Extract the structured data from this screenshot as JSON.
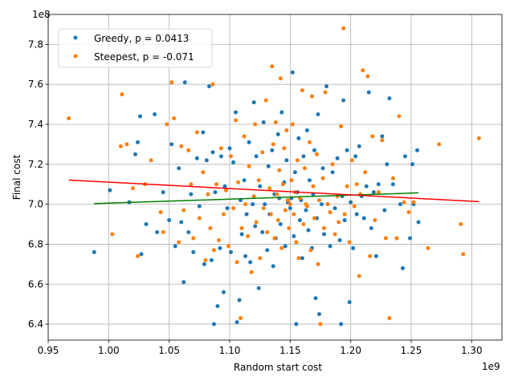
{
  "chart_data": {
    "type": "scatter",
    "title": "",
    "xlabel": "Random start cost",
    "ylabel": "Final cost",
    "x_offset_label": "1e9",
    "y_offset_label": "1e8",
    "xlim": [
      0.95,
      1.325
    ],
    "ylim": [
      6.32,
      7.95
    ],
    "x_ticks": [
      "0.95",
      "1.00",
      "1.05",
      "1.10",
      "1.15",
      "1.20",
      "1.25",
      "1.30"
    ],
    "x_tick_values": [
      0.95,
      1.0,
      1.05,
      1.1,
      1.15,
      1.2,
      1.25,
      1.3
    ],
    "y_ticks": [
      "6.4",
      "6.6",
      "6.8",
      "7.0",
      "7.2",
      "7.4",
      "7.6",
      "7.8"
    ],
    "y_tick_values": [
      6.4,
      6.6,
      6.8,
      7.0,
      7.2,
      7.4,
      7.6,
      7.8
    ],
    "grid": true,
    "legend_position": "top-left",
    "series": [
      {
        "name": "Greedy, p = 0.0413",
        "color": "#1f77b4",
        "points": [
          [
            0.988,
            6.76
          ],
          [
            1.001,
            7.07
          ],
          [
            1.017,
            7.01
          ],
          [
            1.022,
            7.25
          ],
          [
            1.024,
            7.31
          ],
          [
            1.027,
            6.75
          ],
          [
            1.026,
            7.44
          ],
          [
            1.031,
            6.9
          ],
          [
            1.038,
            7.45
          ],
          [
            1.04,
            6.86
          ],
          [
            1.045,
            7.06
          ],
          [
            1.05,
            6.92
          ],
          [
            1.052,
            7.3
          ],
          [
            1.055,
            6.79
          ],
          [
            1.058,
            7.18
          ],
          [
            1.06,
            6.91
          ],
          [
            1.062,
            6.61
          ],
          [
            1.063,
            7.61
          ],
          [
            1.066,
            6.86
          ],
          [
            1.068,
            7.05
          ],
          [
            1.07,
            6.76
          ],
          [
            1.073,
            7.23
          ],
          [
            1.075,
            6.99
          ],
          [
            1.078,
            7.36
          ],
          [
            1.079,
            6.7
          ],
          [
            1.081,
            7.22
          ],
          [
            1.083,
            7.59
          ],
          [
            1.085,
            6.72
          ],
          [
            1.086,
            7.26
          ],
          [
            1.087,
            6.4
          ],
          [
            1.088,
            7.06
          ],
          [
            1.09,
            6.49
          ],
          [
            1.092,
            6.78
          ],
          [
            1.093,
            7.24
          ],
          [
            1.095,
            6.56
          ],
          [
            1.096,
            7.09
          ],
          [
            1.098,
            6.98
          ],
          [
            1.1,
            7.28
          ],
          [
            1.101,
            6.76
          ],
          [
            1.103,
            7.21
          ],
          [
            1.105,
            7.46
          ],
          [
            1.106,
            6.41
          ],
          [
            1.108,
            6.52
          ],
          [
            1.109,
            7.02
          ],
          [
            1.11,
            6.85
          ],
          [
            1.112,
            7.12
          ],
          [
            1.113,
            6.74
          ],
          [
            1.114,
            6.95
          ],
          [
            1.116,
            7.31
          ],
          [
            1.117,
            6.71
          ],
          [
            1.119,
            7.0
          ],
          [
            1.12,
            7.51
          ],
          [
            1.121,
            6.89
          ],
          [
            1.122,
            7.24
          ],
          [
            1.124,
            6.58
          ],
          [
            1.125,
            7.09
          ],
          [
            1.127,
            6.86
          ],
          [
            1.128,
            7.41
          ],
          [
            1.129,
            7.0
          ],
          [
            1.131,
            6.77
          ],
          [
            1.132,
            7.19
          ],
          [
            1.133,
            6.95
          ],
          [
            1.135,
            7.27
          ],
          [
            1.136,
            6.69
          ],
          [
            1.137,
            7.05
          ],
          [
            1.138,
            6.83
          ],
          [
            1.14,
            7.35
          ],
          [
            1.141,
            7.03
          ],
          [
            1.142,
            6.9
          ],
          [
            1.143,
            7.46
          ],
          [
            1.145,
            7.11
          ],
          [
            1.146,
            6.79
          ],
          [
            1.147,
            7.22
          ],
          [
            1.148,
            7.01
          ],
          [
            1.15,
            6.98
          ],
          [
            1.151,
            7.03
          ],
          [
            1.152,
            7.66
          ],
          [
            1.153,
            6.84
          ],
          [
            1.154,
            7.16
          ],
          [
            1.155,
            6.4
          ],
          [
            1.156,
            7.06
          ],
          [
            1.157,
            7.33
          ],
          [
            1.158,
            6.92
          ],
          [
            1.159,
            7.02
          ],
          [
            1.16,
            6.73
          ],
          [
            1.161,
            7.24
          ],
          [
            1.163,
            6.97
          ],
          [
            1.164,
            7.37
          ],
          [
            1.165,
            6.87
          ],
          [
            1.166,
            7.12
          ],
          [
            1.168,
            6.78
          ],
          [
            1.169,
            7.05
          ],
          [
            1.17,
            7.27
          ],
          [
            1.171,
            6.53
          ],
          [
            1.172,
            6.93
          ],
          [
            1.173,
            7.45
          ],
          [
            1.174,
            6.45
          ],
          [
            1.176,
            7.0
          ],
          [
            1.177,
            7.18
          ],
          [
            1.178,
            6.85
          ],
          [
            1.18,
            7.59
          ],
          [
            1.181,
            7.0
          ],
          [
            1.183,
            6.79
          ],
          [
            1.185,
            7.16
          ],
          [
            1.187,
            6.98
          ],
          [
            1.189,
            7.23
          ],
          [
            1.191,
            6.82
          ],
          [
            1.192,
            6.4
          ],
          [
            1.193,
            7.04
          ],
          [
            1.194,
            7.52
          ],
          [
            1.195,
            6.92
          ],
          [
            1.197,
            7.27
          ],
          [
            1.199,
            6.51
          ],
          [
            1.2,
            7.01
          ],
          [
            1.202,
            6.78
          ],
          [
            1.204,
            7.24
          ],
          [
            1.205,
            6.95
          ],
          [
            1.207,
            7.29
          ],
          [
            1.209,
            7.04
          ],
          [
            1.211,
            6.93
          ],
          [
            1.213,
            7.09
          ],
          [
            1.215,
            7.56
          ],
          [
            1.217,
            6.88
          ],
          [
            1.219,
            7.06
          ],
          [
            1.221,
            6.74
          ],
          [
            1.223,
            7.1
          ],
          [
            1.226,
            7.34
          ],
          [
            1.228,
            6.97
          ],
          [
            1.23,
            7.2
          ],
          [
            1.232,
            7.53
          ],
          [
            1.235,
            7.1
          ],
          [
            1.238,
            6.83
          ],
          [
            1.241,
            7.0
          ],
          [
            1.243,
            6.68
          ],
          [
            1.245,
            7.24
          ],
          [
            1.249,
            6.83
          ],
          [
            1.251,
            7.2
          ],
          [
            1.252,
            7.0
          ],
          [
            1.255,
            7.27
          ],
          [
            1.256,
            6.91
          ]
        ]
      },
      {
        "name": "Steepest, p = -0.071",
        "color": "#ff7f0e",
        "points": [
          [
            0.967,
            7.43
          ],
          [
            1.003,
            6.85
          ],
          [
            1.01,
            7.29
          ],
          [
            1.011,
            7.55
          ],
          [
            1.015,
            7.3
          ],
          [
            1.02,
            7.08
          ],
          [
            1.024,
            6.74
          ],
          [
            1.03,
            7.1
          ],
          [
            1.035,
            7.22
          ],
          [
            1.043,
            6.96
          ],
          [
            1.045,
            6.86
          ],
          [
            1.048,
            7.4
          ],
          [
            1.052,
            7.61
          ],
          [
            1.054,
            7.43
          ],
          [
            1.058,
            6.81
          ],
          [
            1.06,
            7.29
          ],
          [
            1.062,
            6.97
          ],
          [
            1.066,
            7.27
          ],
          [
            1.068,
            7.1
          ],
          [
            1.07,
            6.83
          ],
          [
            1.073,
            7.36
          ],
          [
            1.075,
            6.93
          ],
          [
            1.078,
            7.16
          ],
          [
            1.08,
            6.72
          ],
          [
            1.082,
            7.05
          ],
          [
            1.084,
            6.88
          ],
          [
            1.086,
            7.6
          ],
          [
            1.087,
            6.77
          ],
          [
            1.089,
            7.1
          ],
          [
            1.091,
            6.82
          ],
          [
            1.093,
            7.28
          ],
          [
            1.095,
            6.95
          ],
          [
            1.097,
            7.07
          ],
          [
            1.099,
            6.79
          ],
          [
            1.101,
            7.24
          ],
          [
            1.103,
            6.98
          ],
          [
            1.105,
            7.42
          ],
          [
            1.106,
            6.71
          ],
          [
            1.107,
            7.11
          ],
          [
            1.109,
            6.43
          ],
          [
            1.11,
            6.88
          ],
          [
            1.112,
            7.34
          ],
          [
            1.113,
            7.0
          ],
          [
            1.115,
            6.84
          ],
          [
            1.116,
            7.19
          ],
          [
            1.118,
            6.66
          ],
          [
            1.12,
            7.04
          ],
          [
            1.121,
            7.4
          ],
          [
            1.122,
            6.91
          ],
          [
            1.124,
            7.12
          ],
          [
            1.125,
            6.73
          ],
          [
            1.127,
            7.26
          ],
          [
            1.128,
            6.98
          ],
          [
            1.13,
            7.52
          ],
          [
            1.131,
            6.86
          ],
          [
            1.133,
            7.08
          ],
          [
            1.134,
            6.95
          ],
          [
            1.135,
            7.69
          ],
          [
            1.136,
            7.3
          ],
          [
            1.137,
            6.83
          ],
          [
            1.138,
            7.41
          ],
          [
            1.139,
            7.05
          ],
          [
            1.14,
            6.92
          ],
          [
            1.141,
            7.17
          ],
          [
            1.142,
            7.63
          ],
          [
            1.143,
            6.78
          ],
          [
            1.144,
            7.1
          ],
          [
            1.145,
            7.28
          ],
          [
            1.146,
            6.97
          ],
          [
            1.147,
            7.37
          ],
          [
            1.148,
            7.02
          ],
          [
            1.149,
            6.88
          ],
          [
            1.15,
            7.0
          ],
          [
            1.151,
            7.12
          ],
          [
            1.152,
            7.4
          ],
          [
            1.153,
            6.95
          ],
          [
            1.154,
            7.06
          ],
          [
            1.155,
            6.81
          ],
          [
            1.156,
            7.22
          ],
          [
            1.157,
            6.73
          ],
          [
            1.158,
            7.03
          ],
          [
            1.16,
            7.57
          ],
          [
            1.161,
            6.9
          ],
          [
            1.162,
            7.18
          ],
          [
            1.163,
            7.0
          ],
          [
            1.164,
            6.99
          ],
          [
            1.166,
            7.31
          ],
          [
            1.167,
            6.77
          ],
          [
            1.168,
            7.54
          ],
          [
            1.169,
            7.09
          ],
          [
            1.17,
            6.93
          ],
          [
            1.172,
            7.25
          ],
          [
            1.173,
            6.7
          ],
          [
            1.174,
            7.02
          ],
          [
            1.175,
            6.4
          ],
          [
            1.177,
            7.13
          ],
          [
            1.178,
            6.88
          ],
          [
            1.179,
            7.56
          ],
          [
            1.181,
            7.0
          ],
          [
            1.183,
            6.96
          ],
          [
            1.185,
            7.2
          ],
          [
            1.187,
            6.85
          ],
          [
            1.189,
            7.04
          ],
          [
            1.19,
            6.91
          ],
          [
            1.192,
            7.39
          ],
          [
            1.194,
            7.88
          ],
          [
            1.195,
            6.95
          ],
          [
            1.197,
            7.09
          ],
          [
            1.199,
            6.81
          ],
          [
            1.201,
            7.22
          ],
          [
            1.203,
            6.99
          ],
          [
            1.205,
            7.1
          ],
          [
            1.207,
            6.64
          ],
          [
            1.208,
            7.05
          ],
          [
            1.21,
            7.67
          ],
          [
            1.212,
            7.16
          ],
          [
            1.214,
            7.64
          ],
          [
            1.216,
            6.74
          ],
          [
            1.218,
            7.34
          ],
          [
            1.22,
            6.92
          ],
          [
            1.223,
            7.06
          ],
          [
            1.226,
            7.32
          ],
          [
            1.229,
            6.83
          ],
          [
            1.232,
            6.43
          ],
          [
            1.235,
            7.13
          ],
          [
            1.238,
            6.83
          ],
          [
            1.24,
            7.44
          ],
          [
            1.244,
            7.01
          ],
          [
            1.248,
            6.96
          ],
          [
            1.252,
            7.01
          ],
          [
            1.264,
            6.78
          ],
          [
            1.273,
            7.3
          ],
          [
            1.291,
            6.9
          ],
          [
            1.293,
            6.75
          ],
          [
            1.306,
            7.33
          ]
        ]
      }
    ],
    "trend_lines": [
      {
        "color": "#008000",
        "x": [
          0.988,
          1.256
        ],
        "y": [
          7.003,
          7.057
        ]
      },
      {
        "color": "#ff0000",
        "x": [
          0.967,
          1.306
        ],
        "y": [
          7.121,
          7.013
        ]
      }
    ]
  }
}
